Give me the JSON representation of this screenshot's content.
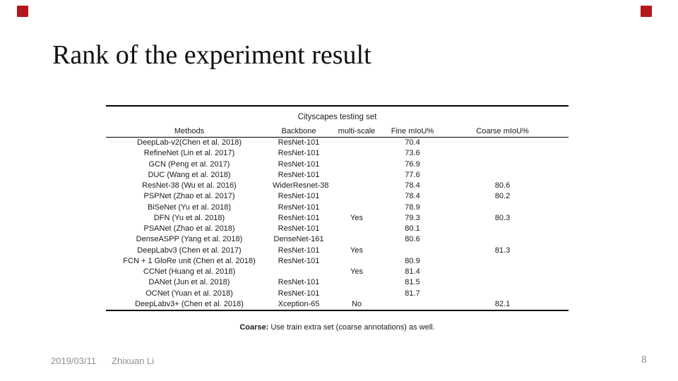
{
  "slide": {
    "title": "Rank of the experiment result",
    "accent_color": "#b2181e",
    "footer": {
      "date": "2019/03/11",
      "author": "Zhixuan Li",
      "page_number": "8"
    }
  },
  "table": {
    "caption": "Cityscapes testing set",
    "columns": [
      "Methods",
      "Backbone",
      "multi-scale",
      "Fine mIoU%",
      "Coarse mIoU%"
    ],
    "rows": [
      [
        "DeepLab-v2(Chen et al. 2018)",
        "ResNet-101",
        "",
        "70.4",
        ""
      ],
      [
        "RefineNet (Lin et al. 2017)",
        "ResNet-101",
        "",
        "73.6",
        ""
      ],
      [
        "GCN (Peng et al. 2017)",
        "ResNet-101",
        "",
        "76.9",
        ""
      ],
      [
        "DUC (Wang et al. 2018)",
        "ResNet-101",
        "",
        "77.6",
        ""
      ],
      [
        "ResNet-38 (Wu et al. 2016)",
        "WiderResnet-38",
        "",
        "78.4",
        "80.6"
      ],
      [
        "PSPNet (Zhao et al. 2017)",
        "ResNet-101",
        "",
        "78.4",
        "80.2"
      ],
      [
        "BiSeNet (Yu et al. 2018)",
        "ResNet-101",
        "",
        "78.9",
        ""
      ],
      [
        "DFN (Yu et al. 2018)",
        "ResNet-101",
        "Yes",
        "79.3",
        "80.3"
      ],
      [
        "PSANet (Zhao et al. 2018)",
        "ResNet-101",
        "",
        "80.1",
        ""
      ],
      [
        "DenseASPP (Yang et al. 2018)",
        "DenseNet-161",
        "",
        "80.6",
        ""
      ],
      [
        "DeepLabv3 (Chen et al. 2017)",
        "ResNet-101",
        "Yes",
        "",
        "81.3"
      ],
      [
        "FCN + 1 GloRe unit (Chen et al. 2018)",
        "ResNet-101",
        "",
        "80.9",
        ""
      ],
      [
        "CCNet (Huang et al. 2018)",
        "",
        "Yes",
        "81.4",
        ""
      ],
      [
        "DANet (Jun et al. 2018)",
        "ResNet-101",
        "",
        "81.5",
        ""
      ],
      [
        "OCNet (Yuan et al. 2018)",
        "ResNet-101",
        "",
        "81.7",
        ""
      ],
      [
        "DeepLabv3+ (Chen et al. 2018)",
        "Xception-65",
        "No",
        "",
        "82.1"
      ]
    ],
    "note_label": "Coarse:",
    "note_text": "Use train extra set (coarse annotations) as well."
  }
}
